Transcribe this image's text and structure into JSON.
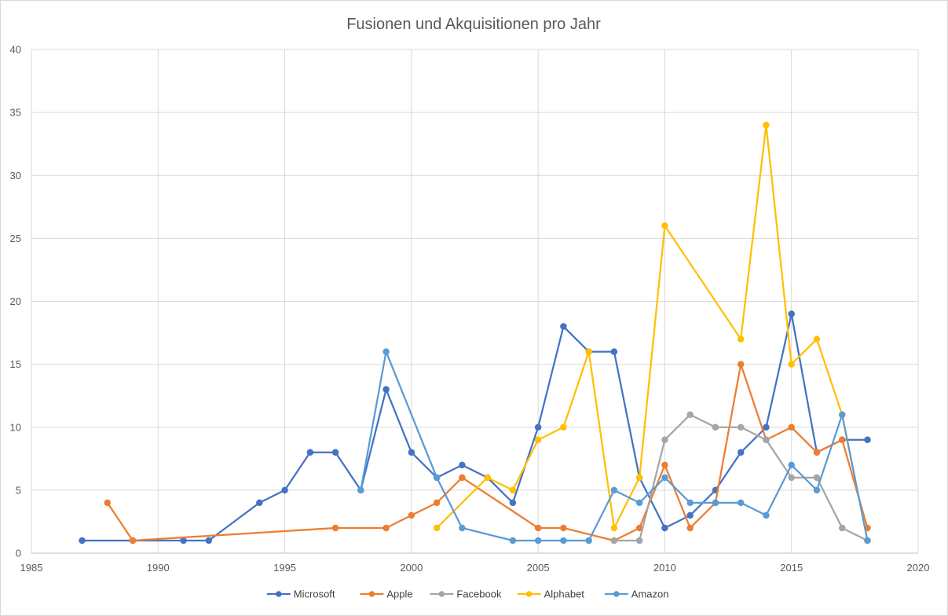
{
  "chart_data": {
    "type": "scatter",
    "title": "Fusionen und Akquisitionen pro Jahr",
    "xlabel": "",
    "ylabel": "",
    "xlim": [
      1985,
      2020
    ],
    "ylim": [
      0,
      40
    ],
    "x_ticks": [
      1985,
      1990,
      1995,
      2000,
      2005,
      2010,
      2015,
      2020
    ],
    "y_ticks": [
      0,
      5,
      10,
      15,
      20,
      25,
      30,
      35,
      40
    ],
    "grid": true,
    "legend_position": "bottom",
    "series": [
      {
        "name": "Microsoft",
        "color": "#4472C4",
        "points": [
          [
            1987,
            1
          ],
          [
            1989,
            1
          ],
          [
            1991,
            1
          ],
          [
            1992,
            1
          ],
          [
            1994,
            4
          ],
          [
            1995,
            5
          ],
          [
            1996,
            8
          ],
          [
            1997,
            8
          ],
          [
            1998,
            5
          ],
          [
            1999,
            13
          ],
          [
            2000,
            8
          ],
          [
            2001,
            6
          ],
          [
            2002,
            7
          ],
          [
            2003,
            6
          ],
          [
            2004,
            4
          ],
          [
            2005,
            10
          ],
          [
            2006,
            18
          ],
          [
            2007,
            16
          ],
          [
            2008,
            16
          ],
          [
            2009,
            6
          ],
          [
            2010,
            2
          ],
          [
            2011,
            3
          ],
          [
            2012,
            5
          ],
          [
            2013,
            8
          ],
          [
            2014,
            10
          ],
          [
            2015,
            19
          ],
          [
            2016,
            8
          ],
          [
            2017,
            9
          ],
          [
            2018,
            9
          ]
        ]
      },
      {
        "name": "Apple",
        "color": "#ED7D31",
        "points": [
          [
            1988,
            4
          ],
          [
            1989,
            1
          ],
          [
            1997,
            2
          ],
          [
            1999,
            2
          ],
          [
            2000,
            3
          ],
          [
            2001,
            4
          ],
          [
            2002,
            6
          ],
          [
            2005,
            2
          ],
          [
            2006,
            2
          ],
          [
            2008,
            1
          ],
          [
            2009,
            2
          ],
          [
            2010,
            7
          ],
          [
            2011,
            2
          ],
          [
            2012,
            4
          ],
          [
            2013,
            15
          ],
          [
            2014,
            9
          ],
          [
            2015,
            10
          ],
          [
            2016,
            8
          ],
          [
            2017,
            9
          ],
          [
            2018,
            2
          ]
        ]
      },
      {
        "name": "Facebook",
        "color": "#A5A5A5",
        "points": [
          [
            2008,
            1
          ],
          [
            2009,
            1
          ],
          [
            2010,
            9
          ],
          [
            2011,
            11
          ],
          [
            2012,
            10
          ],
          [
            2013,
            10
          ],
          [
            2014,
            9
          ],
          [
            2015,
            6
          ],
          [
            2016,
            6
          ],
          [
            2017,
            2
          ],
          [
            2018,
            1
          ]
        ]
      },
      {
        "name": "Alphabet",
        "color": "#FFC000",
        "points": [
          [
            2001,
            2
          ],
          [
            2003,
            6
          ],
          [
            2004,
            5
          ],
          [
            2005,
            9
          ],
          [
            2006,
            10
          ],
          [
            2007,
            16
          ],
          [
            2008,
            2
          ],
          [
            2009,
            6
          ],
          [
            2010,
            26
          ],
          [
            2013,
            17
          ],
          [
            2014,
            34
          ],
          [
            2015,
            15
          ],
          [
            2016,
            17
          ],
          [
            2017,
            11
          ],
          [
            2018,
            1
          ]
        ]
      },
      {
        "name": "Amazon",
        "color": "#5B9BD5",
        "points": [
          [
            1998,
            5
          ],
          [
            1999,
            16
          ],
          [
            2001,
            6
          ],
          [
            2002,
            2
          ],
          [
            2004,
            1
          ],
          [
            2005,
            1
          ],
          [
            2006,
            1
          ],
          [
            2007,
            1
          ],
          [
            2008,
            5
          ],
          [
            2009,
            4
          ],
          [
            2010,
            6
          ],
          [
            2011,
            4
          ],
          [
            2012,
            4
          ],
          [
            2013,
            4
          ],
          [
            2014,
            3
          ],
          [
            2015,
            7
          ],
          [
            2016,
            5
          ],
          [
            2017,
            11
          ],
          [
            2018,
            1
          ]
        ]
      }
    ]
  }
}
